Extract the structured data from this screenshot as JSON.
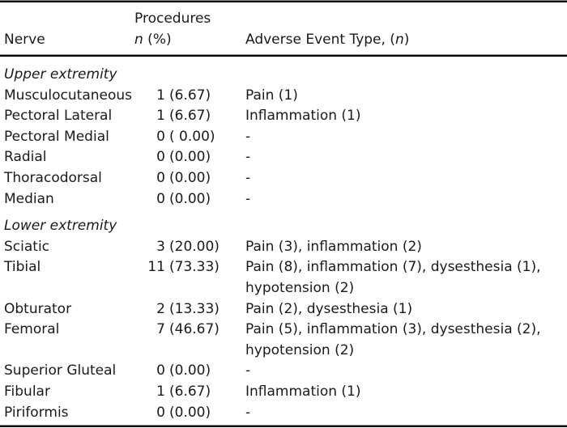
{
  "colors": {
    "background": "#ffffff",
    "text": "#1a1a1a",
    "rule_thick": "#000000",
    "rule_thin": "#8c8c8c"
  },
  "table": {
    "header": {
      "nerve": "Nerve",
      "procedures_line1": "Procedures",
      "procedures_n_italic": "n",
      "procedures_rest": " (%)",
      "adverse_prefix": "Adverse Event Type, (",
      "adverse_n_italic": "n",
      "adverse_suffix": ")"
    },
    "rows": [
      {
        "type": "section",
        "label": "Upper extremity"
      },
      {
        "type": "data",
        "nerve": "Musculocutaneous",
        "n": "1",
        "pct": "(6.67)",
        "events": "Pain (1)"
      },
      {
        "type": "data",
        "nerve": "Pectoral Lateral",
        "n": "1",
        "pct": "(6.67)",
        "events": "Inflammation (1)"
      },
      {
        "type": "data",
        "nerve": "Pectoral Medial",
        "n": "0",
        "pct": "( 0.00)",
        "events": "-"
      },
      {
        "type": "data",
        "nerve": "Radial",
        "n": "0",
        "pct": "(0.00)",
        "events": "-"
      },
      {
        "type": "data",
        "nerve": "Thoracodorsal",
        "n": "0",
        "pct": "(0.00)",
        "events": "-"
      },
      {
        "type": "data",
        "nerve": "Median",
        "n": "0",
        "pct": "(0.00)",
        "events": "-"
      },
      {
        "type": "section",
        "label": "Lower extremity"
      },
      {
        "type": "data",
        "nerve": "Sciatic",
        "n": "3",
        "pct": "(20.00)",
        "events": "Pain (3), inflammation (2)"
      },
      {
        "type": "data",
        "nerve": "Tibial",
        "n": "11",
        "pct": "(73.33)",
        "events": "Pain (8), inflammation (7), dysesthesia (1), hypotension (2)"
      },
      {
        "type": "data",
        "nerve": "Obturator",
        "n": "2",
        "pct": "(13.33)",
        "events": "Pain (2), dysesthesia (1)"
      },
      {
        "type": "data",
        "nerve": "Femoral",
        "n": "7",
        "pct": "(46.67)",
        "events": "Pain (5), inflammation (3), dysesthesia (2), hypotension (2)"
      },
      {
        "type": "data",
        "nerve": "Superior Gluteal",
        "n": "0",
        "pct": "(0.00)",
        "events": "-"
      },
      {
        "type": "data",
        "nerve": "Fibular",
        "n": "1",
        "pct": "(6.67)",
        "events": "Inflammation (1)"
      },
      {
        "type": "data",
        "nerve": "Piriformis",
        "n": "0",
        "pct": "(0.00)",
        "events": "-"
      }
    ]
  }
}
